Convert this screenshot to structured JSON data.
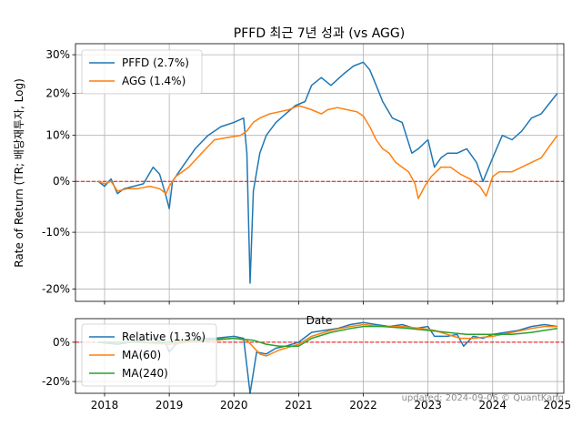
{
  "chart_data": [
    {
      "type": "line",
      "title": "PFFD 최근 7년 성과 (vs AGG)",
      "xlabel": "Date",
      "ylabel": "Rate of Return (TR; 배당재투자, Log)",
      "yscale": "log",
      "ylim": [
        -22,
        33
      ],
      "xlim": [
        2017.55,
        2025.1
      ],
      "y_ticks": [
        {
          "v": 30,
          "label": "30%"
        },
        {
          "v": 20,
          "label": "20%"
        },
        {
          "v": 10,
          "label": "10%"
        },
        {
          "v": 0,
          "label": "0%"
        },
        {
          "v": -10,
          "label": "-10%"
        },
        {
          "v": -20,
          "label": "-20%"
        }
      ],
      "reference_line": {
        "value": 0,
        "style": "dashed",
        "color": "#ff0000"
      },
      "grid": true,
      "legend": "top-left",
      "series": [
        {
          "name": "PFFD (2.7%)",
          "color": "#1f77b4",
          "points": [
            [
              2017.9,
              0
            ],
            [
              2018.0,
              -1
            ],
            [
              2018.1,
              0.5
            ],
            [
              2018.2,
              -2.5
            ],
            [
              2018.3,
              -1.5
            ],
            [
              2018.45,
              -1
            ],
            [
              2018.6,
              -0.5
            ],
            [
              2018.75,
              3
            ],
            [
              2018.85,
              1.5
            ],
            [
              2018.95,
              -3
            ],
            [
              2019.0,
              -5.5
            ],
            [
              2019.05,
              0
            ],
            [
              2019.2,
              3
            ],
            [
              2019.4,
              7
            ],
            [
              2019.6,
              10
            ],
            [
              2019.8,
              12
            ],
            [
              2020.0,
              13
            ],
            [
              2020.15,
              14
            ],
            [
              2020.2,
              6
            ],
            [
              2020.25,
              -19
            ],
            [
              2020.3,
              -2
            ],
            [
              2020.4,
              6
            ],
            [
              2020.5,
              10
            ],
            [
              2020.65,
              13
            ],
            [
              2020.8,
              15
            ],
            [
              2020.95,
              17
            ],
            [
              2021.1,
              18
            ],
            [
              2021.2,
              22
            ],
            [
              2021.35,
              24
            ],
            [
              2021.5,
              22
            ],
            [
              2021.7,
              25
            ],
            [
              2021.85,
              27
            ],
            [
              2022.0,
              28
            ],
            [
              2022.1,
              26
            ],
            [
              2022.2,
              22
            ],
            [
              2022.3,
              18
            ],
            [
              2022.45,
              14
            ],
            [
              2022.6,
              13
            ],
            [
              2022.75,
              6
            ],
            [
              2022.85,
              7
            ],
            [
              2023.0,
              9
            ],
            [
              2023.1,
              3
            ],
            [
              2023.2,
              5
            ],
            [
              2023.3,
              6
            ],
            [
              2023.45,
              6
            ],
            [
              2023.6,
              7
            ],
            [
              2023.75,
              4
            ],
            [
              2023.85,
              0
            ],
            [
              2024.0,
              5
            ],
            [
              2024.15,
              10
            ],
            [
              2024.3,
              9
            ],
            [
              2024.45,
              11
            ],
            [
              2024.6,
              14
            ],
            [
              2024.75,
              15
            ],
            [
              2024.85,
              17
            ],
            [
              2025.0,
              20
            ]
          ]
        },
        {
          "name": "AGG (1.4%)",
          "color": "#ff7f0e",
          "points": [
            [
              2017.9,
              0
            ],
            [
              2018.0,
              -0.5
            ],
            [
              2018.1,
              0
            ],
            [
              2018.2,
              -2
            ],
            [
              2018.35,
              -1.5
            ],
            [
              2018.5,
              -1.5
            ],
            [
              2018.7,
              -1
            ],
            [
              2018.85,
              -1.5
            ],
            [
              2018.95,
              -2.5
            ],
            [
              2019.0,
              -1
            ],
            [
              2019.1,
              1
            ],
            [
              2019.3,
              3
            ],
            [
              2019.5,
              6
            ],
            [
              2019.7,
              9
            ],
            [
              2019.9,
              9.5
            ],
            [
              2020.1,
              10
            ],
            [
              2020.2,
              11
            ],
            [
              2020.25,
              12
            ],
            [
              2020.3,
              13
            ],
            [
              2020.4,
              14
            ],
            [
              2020.55,
              15
            ],
            [
              2020.7,
              15.5
            ],
            [
              2020.85,
              16
            ],
            [
              2021.0,
              17
            ],
            [
              2021.2,
              16
            ],
            [
              2021.35,
              15
            ],
            [
              2021.45,
              16
            ],
            [
              2021.6,
              16.5
            ],
            [
              2021.75,
              16
            ],
            [
              2021.9,
              15.5
            ],
            [
              2022.0,
              14.5
            ],
            [
              2022.1,
              12
            ],
            [
              2022.2,
              9
            ],
            [
              2022.3,
              7
            ],
            [
              2022.4,
              6
            ],
            [
              2022.5,
              4
            ],
            [
              2022.6,
              3
            ],
            [
              2022.7,
              2
            ],
            [
              2022.8,
              -0.5
            ],
            [
              2022.85,
              -3.5
            ],
            [
              2022.95,
              -1
            ],
            [
              2023.05,
              1
            ],
            [
              2023.2,
              3
            ],
            [
              2023.35,
              3
            ],
            [
              2023.5,
              1.5
            ],
            [
              2023.65,
              0.5
            ],
            [
              2023.8,
              -1
            ],
            [
              2023.9,
              -3
            ],
            [
              2024.0,
              1
            ],
            [
              2024.1,
              2
            ],
            [
              2024.3,
              2
            ],
            [
              2024.45,
              3
            ],
            [
              2024.6,
              4
            ],
            [
              2024.75,
              5
            ],
            [
              2024.85,
              7
            ],
            [
              2025.0,
              10
            ]
          ]
        }
      ]
    },
    {
      "type": "line",
      "xlabel": "",
      "ylabel": "",
      "ylim": [
        -26,
        12
      ],
      "xlim": [
        2017.55,
        2025.1
      ],
      "x_ticks": [
        {
          "v": 2018,
          "label": "2018"
        },
        {
          "v": 2019,
          "label": "2019"
        },
        {
          "v": 2020,
          "label": "2020"
        },
        {
          "v": 2021,
          "label": "2021"
        },
        {
          "v": 2022,
          "label": "2022"
        },
        {
          "v": 2023,
          "label": "2023"
        },
        {
          "v": 2024,
          "label": "2024"
        },
        {
          "v": 2025,
          "label": "2025"
        }
      ],
      "y_ticks": [
        {
          "v": 0,
          "label": "0%"
        },
        {
          "v": -20,
          "label": "-20%"
        }
      ],
      "reference_line": {
        "value": 0,
        "style": "dashed",
        "color": "#ff0000"
      },
      "grid": true,
      "legend": "bottom-left",
      "series": [
        {
          "name": "Relative (1.3%)",
          "color": "#1f77b4",
          "points": [
            [
              2017.9,
              0
            ],
            [
              2018.2,
              -1
            ],
            [
              2018.5,
              0.5
            ],
            [
              2018.75,
              2
            ],
            [
              2018.95,
              -1
            ],
            [
              2019.0,
              -5
            ],
            [
              2019.1,
              -1
            ],
            [
              2019.4,
              2
            ],
            [
              2019.7,
              2
            ],
            [
              2020.0,
              3
            ],
            [
              2020.15,
              2
            ],
            [
              2020.25,
              -26
            ],
            [
              2020.35,
              -5
            ],
            [
              2020.5,
              -6
            ],
            [
              2020.65,
              -3
            ],
            [
              2020.8,
              -2
            ],
            [
              2021.0,
              0
            ],
            [
              2021.2,
              5
            ],
            [
              2021.4,
              6
            ],
            [
              2021.6,
              7
            ],
            [
              2021.8,
              9
            ],
            [
              2022.0,
              10
            ],
            [
              2022.2,
              9
            ],
            [
              2022.4,
              8
            ],
            [
              2022.6,
              9
            ],
            [
              2022.8,
              7
            ],
            [
              2023.0,
              8
            ],
            [
              2023.1,
              3
            ],
            [
              2023.3,
              3
            ],
            [
              2023.45,
              4
            ],
            [
              2023.55,
              -2
            ],
            [
              2023.7,
              3
            ],
            [
              2023.85,
              2
            ],
            [
              2024.0,
              4
            ],
            [
              2024.2,
              5
            ],
            [
              2024.4,
              6
            ],
            [
              2024.6,
              8
            ],
            [
              2024.8,
              9
            ],
            [
              2025.0,
              8
            ]
          ]
        },
        {
          "name": "MA(60)",
          "color": "#ff7f0e",
          "points": [
            [
              2017.9,
              0
            ],
            [
              2018.5,
              0
            ],
            [
              2019.0,
              -1
            ],
            [
              2019.3,
              0
            ],
            [
              2019.7,
              1
            ],
            [
              2020.0,
              2
            ],
            [
              2020.2,
              1
            ],
            [
              2020.4,
              -6
            ],
            [
              2020.5,
              -7
            ],
            [
              2020.7,
              -4
            ],
            [
              2021.0,
              -1
            ],
            [
              2021.2,
              3
            ],
            [
              2021.5,
              6
            ],
            [
              2021.8,
              8
            ],
            [
              2022.0,
              9
            ],
            [
              2022.3,
              8
            ],
            [
              2022.6,
              8
            ],
            [
              2022.9,
              7
            ],
            [
              2023.1,
              6
            ],
            [
              2023.3,
              4
            ],
            [
              2023.5,
              2
            ],
            [
              2023.7,
              2
            ],
            [
              2024.0,
              3
            ],
            [
              2024.3,
              5
            ],
            [
              2024.6,
              7
            ],
            [
              2024.8,
              8
            ],
            [
              2025.0,
              8
            ]
          ]
        },
        {
          "name": "MA(240)",
          "color": "#2ca02c",
          "points": [
            [
              2017.9,
              0
            ],
            [
              2018.5,
              0
            ],
            [
              2019.0,
              0
            ],
            [
              2019.5,
              1
            ],
            [
              2020.0,
              2
            ],
            [
              2020.3,
              1
            ],
            [
              2020.5,
              -1
            ],
            [
              2020.7,
              -2
            ],
            [
              2021.0,
              -2
            ],
            [
              2021.2,
              2
            ],
            [
              2021.5,
              5
            ],
            [
              2021.8,
              7
            ],
            [
              2022.0,
              8
            ],
            [
              2022.3,
              8
            ],
            [
              2022.7,
              7
            ],
            [
              2023.0,
              6
            ],
            [
              2023.3,
              5
            ],
            [
              2023.6,
              4
            ],
            [
              2024.0,
              4
            ],
            [
              2024.3,
              4
            ],
            [
              2024.6,
              5
            ],
            [
              2024.8,
              6
            ],
            [
              2025.0,
              7
            ]
          ]
        }
      ]
    }
  ],
  "footer": {
    "updated": "updated: 2024-09-06 © QuantKang"
  }
}
